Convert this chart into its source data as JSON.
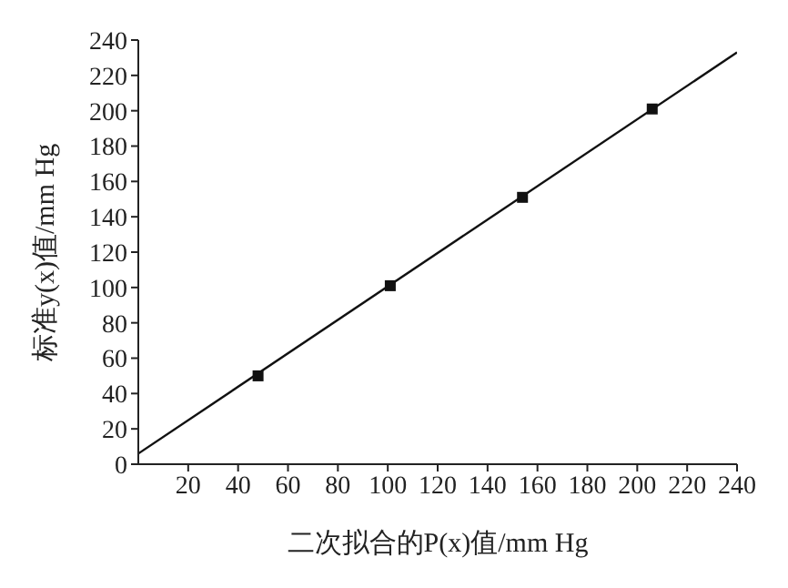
{
  "chart_data": {
    "type": "scatter",
    "xlabel": "二次拟合的P(x)值/mm Hg",
    "ylabel": "标准y(x)值/mm Hg",
    "xlim": [
      0,
      240
    ],
    "xticks": [
      20,
      40,
      60,
      80,
      100,
      120,
      140,
      160,
      180,
      200,
      220,
      240
    ],
    "ylim": [
      0,
      240
    ],
    "yticks": [
      0,
      20,
      40,
      60,
      80,
      100,
      120,
      140,
      160,
      180,
      200,
      220,
      240
    ],
    "grid": false,
    "legend": false,
    "series": [
      {
        "color": "#111111",
        "marker": "square",
        "x": [
          48,
          101,
          154,
          206
        ],
        "values": [
          50,
          101,
          151,
          201
        ]
      },
      {
        "type": "line",
        "color": "#111111",
        "marker": "none",
        "line_style": "solid",
        "x": [
          0,
          240
        ],
        "values": [
          6,
          233
        ]
      }
    ]
  }
}
